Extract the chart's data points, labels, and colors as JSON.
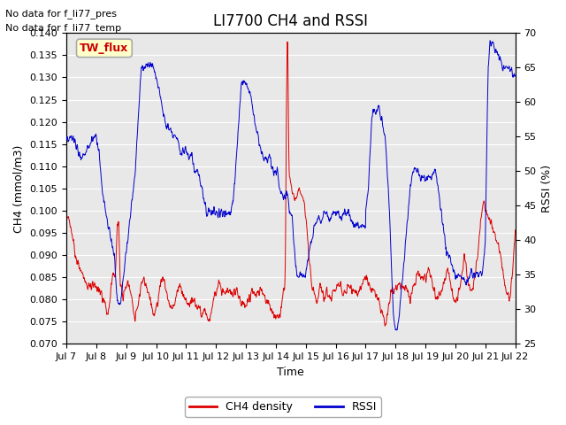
{
  "title": "LI7700 CH4 and RSSI",
  "xlabel": "Time",
  "ylabel_left": "CH4 (mmol/m3)",
  "ylabel_right": "RSSI (%)",
  "annotation1": "No data for f_li77_pres",
  "annotation2": "No data for f_li77_temp",
  "legend_box_label": "TW_flux",
  "legend_box_color": "#ffffcc",
  "legend_box_edge_color": "#aaaaaa",
  "legend_box_text_color": "#cc0000",
  "ylim_left": [
    0.07,
    0.14
  ],
  "ylim_right": [
    25,
    70
  ],
  "yticks_left": [
    0.07,
    0.075,
    0.08,
    0.085,
    0.09,
    0.095,
    0.1,
    0.105,
    0.11,
    0.115,
    0.12,
    0.125,
    0.13,
    0.135,
    0.14
  ],
  "yticks_right": [
    25,
    30,
    35,
    40,
    45,
    50,
    55,
    60,
    65,
    70
  ],
  "xtick_labels": [
    "Jul 7",
    "Jul 8",
    "Jul 9",
    "Jul 10",
    "Jul 11",
    "Jul 12",
    "Jul 13",
    "Jul 14",
    "Jul 15",
    "Jul 16",
    "Jul 17",
    "Jul 18",
    "Jul 19",
    "Jul 20",
    "Jul 21",
    "Jul 22"
  ],
  "ch4_color": "#dd0000",
  "rssi_color": "#0000cc",
  "background_color": "#e8e8e8",
  "grid_color": "#ffffff",
  "title_fontsize": 12,
  "axis_label_fontsize": 9,
  "tick_fontsize": 8,
  "annot_fontsize": 8
}
